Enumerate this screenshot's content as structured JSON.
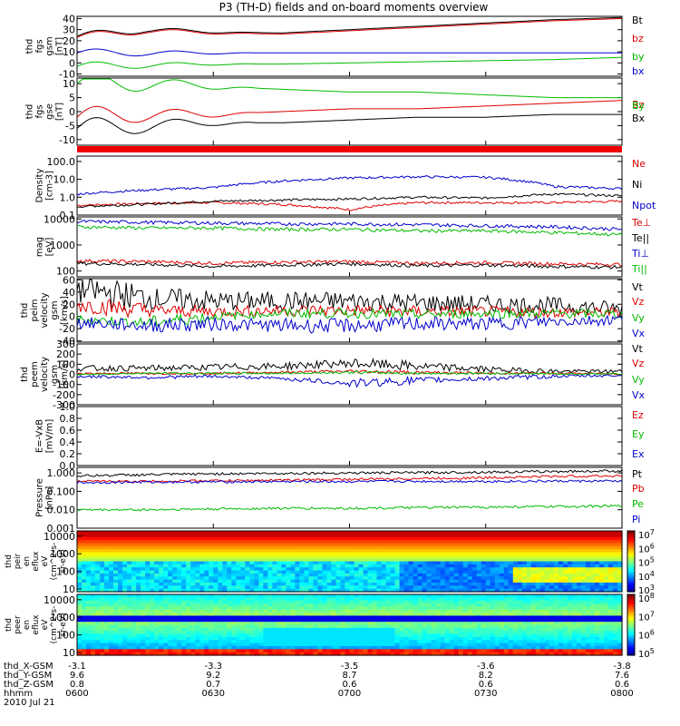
{
  "title": "P3 (TH-D) fields and on-board moments overview",
  "chart_data": {
    "type": "line",
    "title": "P3 (TH-D) fields and on-board moments overview",
    "x": {
      "labels": [
        "0600",
        "0630",
        "0700",
        "0730",
        "0800"
      ],
      "range": [
        "0600",
        "0800"
      ],
      "unit": "hhmm"
    },
    "panels": [
      {
        "id": "fgs_gsm",
        "ylabel": [
          "thd",
          "fgs",
          "gsm",
          "[nT]"
        ],
        "yticks": [
          40,
          30,
          20,
          10,
          0,
          -10
        ],
        "ylim": [
          -12,
          42
        ],
        "series": [
          {
            "name": "Bt",
            "color": "#000000",
            "values": [
              24,
              30,
              28,
              27,
              30,
              33,
              36,
              39,
              41
            ]
          },
          {
            "name": "bz",
            "color": "#dd0000",
            "values": [
              23,
              29,
              27,
              26,
              29,
              32,
              35,
              38,
              40
            ]
          },
          {
            "name": "by",
            "color": "#00bb00",
            "values": [
              -3,
              -2,
              -1,
              -1,
              0,
              1,
              2,
              3,
              5
            ]
          },
          {
            "name": "bx",
            "color": "#0000cc",
            "values": [
              9,
              9,
              9,
              9,
              9,
              9,
              9,
              9,
              9
            ]
          }
        ]
      },
      {
        "id": "fgs_gse",
        "ylabel": [
          "thd",
          "fgs",
          "gse",
          "[nT]"
        ],
        "yticks": [
          10,
          5,
          0,
          -5,
          -10
        ],
        "ylim": [
          -12,
          12
        ],
        "series": [
          {
            "name": "Bz",
            "color": "#dd0000",
            "values": [
              -2,
              -1,
              -1,
              0,
              1,
              1,
              2,
              3,
              4
            ]
          },
          {
            "name": "By",
            "color": "#00bb00",
            "values": [
              10,
              10,
              9,
              8,
              7,
              7,
              6,
              5,
              5
            ]
          },
          {
            "name": "Bx",
            "color": "#000000",
            "values": [
              -6,
              -5,
              -4,
              -4,
              -3,
              -2,
              -2,
              -1,
              -1
            ]
          }
        ]
      },
      {
        "id": "density",
        "ylabel": [
          "Density",
          "[cm-3]"
        ],
        "yticks": [
          "100.0",
          "10.0",
          "1.0",
          "0.1"
        ],
        "ylim": [
          0.1,
          200
        ],
        "log": true,
        "series": [
          {
            "name": "Ne",
            "color": "#dd0000",
            "values": [
              0.35,
              0.45,
              0.5,
              0.4,
              0.2,
              0.5,
              0.5,
              0.5,
              0.6
            ]
          },
          {
            "name": "Ni",
            "color": "#000000",
            "values": [
              0.3,
              0.4,
              0.6,
              0.7,
              0.8,
              1.0,
              0.9,
              1.5,
              1.2
            ]
          },
          {
            "name": "Npot",
            "color": "#0000cc",
            "values": [
              1.5,
              2.5,
              3.5,
              8,
              12,
              14,
              13,
              4,
              3
            ]
          }
        ]
      },
      {
        "id": "temperature",
        "ylabel": [
          "mag",
          "[eV]"
        ],
        "yticks": [
          10000,
          1000,
          100
        ],
        "ylim": [
          60,
          12000
        ],
        "log": true,
        "series": [
          {
            "name": "Te⊥",
            "color": "#dd0000",
            "values": [
              250,
              230,
              200,
              220,
              230,
              200,
              210,
              190,
              180
            ]
          },
          {
            "name": "Te||",
            "color": "#000000",
            "values": [
              200,
              180,
              150,
              170,
              190,
              160,
              170,
              150,
              140
            ]
          },
          {
            "name": "Ti⊥",
            "color": "#0000cc",
            "values": [
              8000,
              7500,
              7000,
              6500,
              6500,
              6000,
              5500,
              5000,
              4000
            ]
          },
          {
            "name": "Ti||",
            "color": "#00bb00",
            "values": [
              5000,
              4500,
              4500,
              4000,
              4000,
              3500,
              3500,
              3000,
              2500
            ]
          }
        ]
      },
      {
        "id": "peim_velocity",
        "ylabel": [
          "thd",
          "peim",
          "velocity",
          "gsm",
          "[km/s]"
        ],
        "yticks": [
          60,
          40,
          20,
          0,
          -20,
          -40
        ],
        "ylim": [
          -42,
          62
        ],
        "series": [
          {
            "name": "Vt",
            "color": "#000000",
            "values": [
              45,
              30,
              25,
              25,
              25,
              22,
              20,
              18,
              12
            ]
          },
          {
            "name": "Vz",
            "color": "#dd0000",
            "values": [
              20,
              10,
              8,
              10,
              10,
              8,
              8,
              7,
              6
            ]
          },
          {
            "name": "Vy",
            "color": "#00bb00",
            "values": [
              -5,
              -10,
              0,
              5,
              5,
              3,
              5,
              5,
              4
            ]
          },
          {
            "name": "Vx",
            "color": "#0000cc",
            "values": [
              -10,
              -15,
              -12,
              -15,
              -15,
              -12,
              -12,
              -8,
              -5
            ]
          }
        ]
      },
      {
        "id": "peem_velocity",
        "ylabel": [
          "thd",
          "peem",
          "velocity",
          "gsm",
          "[km/s]"
        ],
        "yticks": [
          300,
          200,
          100,
          0,
          -100,
          -200,
          -300
        ],
        "ylim": [
          -300,
          300
        ],
        "series": [
          {
            "name": "Vt",
            "color": "#000000",
            "values": [
              60,
              60,
              70,
              80,
              110,
              80,
              50,
              30,
              30
            ]
          },
          {
            "name": "Vz",
            "color": "#dd0000",
            "values": [
              10,
              10,
              10,
              20,
              30,
              20,
              10,
              10,
              5
            ]
          },
          {
            "name": "Vy",
            "color": "#00bb00",
            "values": [
              0,
              10,
              10,
              10,
              20,
              10,
              10,
              5,
              5
            ]
          },
          {
            "name": "Vx",
            "color": "#0000cc",
            "values": [
              -20,
              -30,
              -20,
              -40,
              -90,
              -60,
              -40,
              -20,
              -10
            ]
          }
        ]
      },
      {
        "id": "efield",
        "ylabel": [
          "E=-VxB",
          "[mV/m]"
        ],
        "yticks": [
          "1.0",
          "0.8",
          "0.6",
          "0.4",
          "0.2",
          "0.0"
        ],
        "ylim": [
          0,
          1
        ],
        "series": [
          {
            "name": "Ez",
            "color": "#dd0000",
            "values": []
          },
          {
            "name": "Ey",
            "color": "#00bb00",
            "values": []
          },
          {
            "name": "Ex",
            "color": "#0000cc",
            "values": []
          }
        ]
      },
      {
        "id": "pressure",
        "ylabel": [
          "Pressure",
          "[nPa]"
        ],
        "yticks": [
          "1.000",
          "0.100",
          "0.010",
          "0.001"
        ],
        "ylim": [
          0.001,
          2
        ],
        "log": true,
        "series": [
          {
            "name": "Pt",
            "color": "#000000",
            "values": [
              0.7,
              0.8,
              0.9,
              0.95,
              1.0,
              1.05,
              1.1,
              1.2,
              1.3
            ]
          },
          {
            "name": "Pb",
            "color": "#dd0000",
            "values": [
              0.35,
              0.35,
              0.38,
              0.4,
              0.45,
              0.5,
              0.55,
              0.65,
              0.7
            ]
          },
          {
            "name": "Pe",
            "color": "#00bb00",
            "values": [
              0.01,
              0.01,
              0.011,
              0.012,
              0.012,
              0.013,
              0.014,
              0.015,
              0.016
            ]
          },
          {
            "name": "Pi",
            "color": "#0000cc",
            "values": [
              0.3,
              0.32,
              0.33,
              0.34,
              0.34,
              0.35,
              0.35,
              0.36,
              0.36
            ]
          }
        ]
      }
    ],
    "spectrograms": [
      {
        "id": "ion_spec",
        "ylabel": [
          "thd",
          "peir",
          "en",
          "eflux",
          "eV",
          "(cm^2-s-",
          "sr-eV)"
        ],
        "yticks": [
          10000,
          1000,
          100,
          10
        ],
        "colorbar_ticks": [
          "10^7",
          "10^6",
          "10^5",
          "10^4",
          "10^3"
        ],
        "colorbar_unit": "eV/(cm^2-s-sr-eV)"
      },
      {
        "id": "electron_spec",
        "ylabel": [
          "thd",
          "peer",
          "en",
          "eflux",
          "eV",
          "(cm^2-s-",
          "sr-eV)"
        ],
        "yticks": [
          10000,
          1000,
          100,
          10
        ],
        "colorbar_ticks": [
          "10^8",
          "10^7",
          "10^6",
          "10^5"
        ],
        "colorbar_unit": "eV/(cm^2-s-sr-eV)"
      }
    ]
  },
  "footer": {
    "rows": [
      {
        "label": "thd_X-GSM",
        "values": [
          "-3.1",
          "-3.3",
          "-3.5",
          "-3.6",
          "-3.8"
        ]
      },
      {
        "label": "thd_Y-GSM",
        "values": [
          "9.6",
          "9.2",
          "8.7",
          "8.2",
          "7.6"
        ]
      },
      {
        "label": "thd_Z-GSM",
        "values": [
          "0.8",
          "0.7",
          "0.6",
          "0.6",
          "0.6"
        ]
      },
      {
        "label": "hhmm",
        "values": [
          "0600",
          "0630",
          "0700",
          "0730",
          "0800"
        ]
      }
    ],
    "date": "2010 Jul 21"
  }
}
